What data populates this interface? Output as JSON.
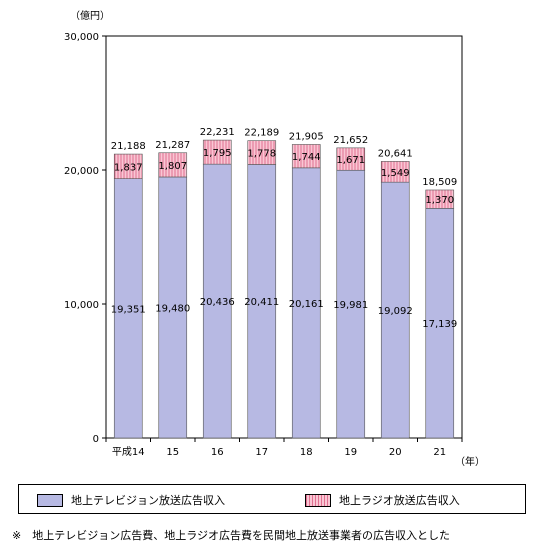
{
  "chart_data": {
    "type": "bar",
    "stacked": true,
    "y_unit": "（億円）",
    "x_unit": "（年）",
    "categories": [
      "平成14",
      "15",
      "16",
      "17",
      "18",
      "19",
      "20",
      "21"
    ],
    "ylim": [
      0,
      30000
    ],
    "yticks": [
      "0",
      "10,000",
      "20,000",
      "30,000"
    ],
    "grid": false,
    "legend_position": "bottom",
    "series": [
      {
        "name": "地上テレビジョン放送広告収入",
        "values": [
          19351,
          19480,
          20436,
          20411,
          20161,
          19981,
          19092,
          17139
        ],
        "labels": [
          "19,351",
          "19,480",
          "20,436",
          "20,411",
          "20,161",
          "19,981",
          "19,092",
          "17,139"
        ],
        "color": "#b7b9e3"
      },
      {
        "name": "地上ラジオ放送広告収入",
        "values": [
          1837,
          1807,
          1795,
          1778,
          1744,
          1671,
          1549,
          1370
        ],
        "labels": [
          "1,837",
          "1,807",
          "1,795",
          "1,778",
          "1,744",
          "1,671",
          "1,549",
          "1,370"
        ],
        "color": "#f7bfcf",
        "hatch": "#e07090"
      }
    ],
    "totals": [
      "21,188",
      "21,287",
      "22,231",
      "22,189",
      "21,905",
      "21,652",
      "20,641",
      "18,509"
    ]
  },
  "legend": {
    "tv": "地上テレビジョン放送広告収入",
    "radio": "地上ラジオ放送広告収入"
  },
  "note": "※　地上テレビジョン広告費、地上ラジオ広告費を民間地上放送事業者の広告収入とした"
}
